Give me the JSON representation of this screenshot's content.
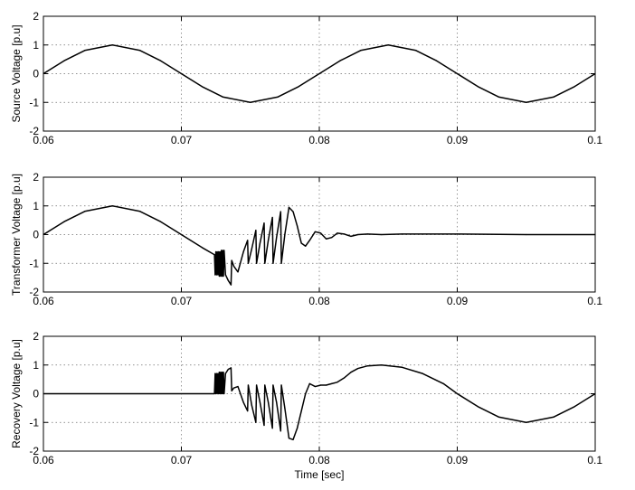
{
  "chart_data": [
    {
      "type": "line",
      "title": "",
      "xlabel": "",
      "ylabel": "Source Voltage [p.u]",
      "xlim": [
        0.06,
        0.1
      ],
      "ylim": [
        -2,
        2
      ],
      "xticks": [
        "0.06",
        "0.07",
        "0.08",
        "0.09",
        "0.1"
      ],
      "yticks": [
        "2",
        "1",
        "0",
        "-1",
        "-2"
      ],
      "grid": true,
      "series": [
        {
          "color": "#000000",
          "x": [
            0.06,
            0.0615,
            0.063,
            0.065,
            0.067,
            0.0685,
            0.07,
            0.0715,
            0.073,
            0.075,
            0.077,
            0.0785,
            0.08,
            0.0815,
            0.083,
            0.085,
            0.087,
            0.0885,
            0.09,
            0.0915,
            0.093,
            0.095,
            0.097,
            0.0985,
            0.1
          ],
          "y": [
            0,
            0.45,
            0.81,
            1.0,
            0.81,
            0.45,
            0,
            -0.45,
            -0.81,
            -1.0,
            -0.81,
            -0.45,
            0,
            0.45,
            0.81,
            1.0,
            0.81,
            0.45,
            0,
            -0.45,
            -0.81,
            -1.0,
            -0.81,
            -0.45,
            0
          ]
        }
      ]
    },
    {
      "type": "line",
      "title": "",
      "xlabel": "",
      "ylabel": "Transformer Voltage [p.u]",
      "xlim": [
        0.06,
        0.1
      ],
      "ylim": [
        -2,
        2
      ],
      "xticks": [
        "0.06",
        "0.07",
        "0.08",
        "0.09",
        "0.1"
      ],
      "yticks": [
        "2",
        "1",
        "0",
        "-1",
        "-2"
      ],
      "grid": true,
      "series": [
        {
          "color": "#000000",
          "x": [
            0.06,
            0.0615,
            0.063,
            0.065,
            0.067,
            0.0685,
            0.07,
            0.0715,
            0.0724,
            0.07245,
            0.0725,
            0.07255,
            0.0726,
            0.07265,
            0.0727,
            0.07275,
            0.0728,
            0.07285,
            0.0729,
            0.07295,
            0.073,
            0.07305,
            0.0731,
            0.0732,
            0.0734,
            0.0736,
            0.07365,
            0.0738,
            0.0741,
            0.0745,
            0.0748,
            0.07485,
            0.0751,
            0.0754,
            0.07545,
            0.0757,
            0.076,
            0.07605,
            0.0763,
            0.0766,
            0.07665,
            0.0769,
            0.0772,
            0.07725,
            0.0775,
            0.0778,
            0.0781,
            0.0784,
            0.0787,
            0.079,
            0.0793,
            0.0797,
            0.0801,
            0.0805,
            0.0809,
            0.0813,
            0.0818,
            0.0823,
            0.0828,
            0.0835,
            0.0845,
            0.086,
            0.09,
            0.095,
            0.1
          ],
          "y": [
            0,
            0.45,
            0.81,
            1.0,
            0.81,
            0.45,
            0,
            -0.45,
            -0.7,
            -1.4,
            -0.6,
            -1.4,
            -0.6,
            -1.4,
            -0.6,
            -1.45,
            -0.6,
            -1.45,
            -0.55,
            -1.45,
            -0.55,
            -1.45,
            -0.55,
            -1.4,
            -1.6,
            -1.75,
            -0.9,
            -1.1,
            -1.3,
            -0.6,
            -0.2,
            -1.0,
            -0.5,
            0.15,
            -1.0,
            -0.3,
            0.4,
            -1.0,
            -0.2,
            0.6,
            -1.0,
            -0.1,
            0.8,
            -1.0,
            0.0,
            0.95,
            0.8,
            0.3,
            -0.3,
            -0.4,
            -0.2,
            0.1,
            0.05,
            -0.15,
            -0.1,
            0.05,
            0.02,
            -0.06,
            0.0,
            0.02,
            0.0,
            0.02,
            0.02,
            0.0,
            0.0
          ]
        }
      ]
    },
    {
      "type": "line",
      "title": "",
      "xlabel": "Time [sec]",
      "ylabel": "Recovery Voltage [p.u]",
      "xlim": [
        0.06,
        0.1
      ],
      "ylim": [
        -2,
        2
      ],
      "xticks": [
        "0.06",
        "0.07",
        "0.08",
        "0.09",
        "0.1"
      ],
      "yticks": [
        "2",
        "1",
        "0",
        "-1",
        "-2"
      ],
      "grid": true,
      "series": [
        {
          "color": "#000000",
          "x": [
            0.06,
            0.0724,
            0.07245,
            0.0725,
            0.07255,
            0.0726,
            0.07265,
            0.0727,
            0.07275,
            0.0728,
            0.07285,
            0.0729,
            0.07295,
            0.073,
            0.07305,
            0.0731,
            0.0732,
            0.0734,
            0.0736,
            0.07365,
            0.0738,
            0.0741,
            0.0745,
            0.0748,
            0.07485,
            0.0751,
            0.0754,
            0.07545,
            0.0757,
            0.076,
            0.07605,
            0.0763,
            0.0766,
            0.07665,
            0.0769,
            0.0772,
            0.07725,
            0.0775,
            0.0778,
            0.0781,
            0.0784,
            0.0787,
            0.079,
            0.0793,
            0.0797,
            0.0801,
            0.0805,
            0.0809,
            0.0813,
            0.0818,
            0.0823,
            0.0828,
            0.0835,
            0.0845,
            0.086,
            0.0875,
            0.089,
            0.09,
            0.0915,
            0.093,
            0.095,
            0.097,
            0.0985,
            0.1
          ],
          "y": [
            0,
            0,
            0.7,
            0,
            0.7,
            0,
            0.7,
            0,
            0.75,
            0,
            0.75,
            0,
            0.75,
            0,
            0.75,
            0,
            0.7,
            0.85,
            0.9,
            0.1,
            0.2,
            0.25,
            -0.3,
            -0.6,
            0.3,
            -0.4,
            -1.0,
            0.3,
            -0.3,
            -1.1,
            0.3,
            -0.3,
            -1.2,
            0.3,
            -0.3,
            -1.3,
            0.3,
            -0.5,
            -1.55,
            -1.6,
            -1.2,
            -0.6,
            0.0,
            0.35,
            0.25,
            0.3,
            0.3,
            0.35,
            0.4,
            0.55,
            0.75,
            0.88,
            0.97,
            1.0,
            0.92,
            0.7,
            0.35,
            0.0,
            -0.45,
            -0.81,
            -1.0,
            -0.81,
            -0.45,
            0
          ]
        }
      ]
    }
  ]
}
